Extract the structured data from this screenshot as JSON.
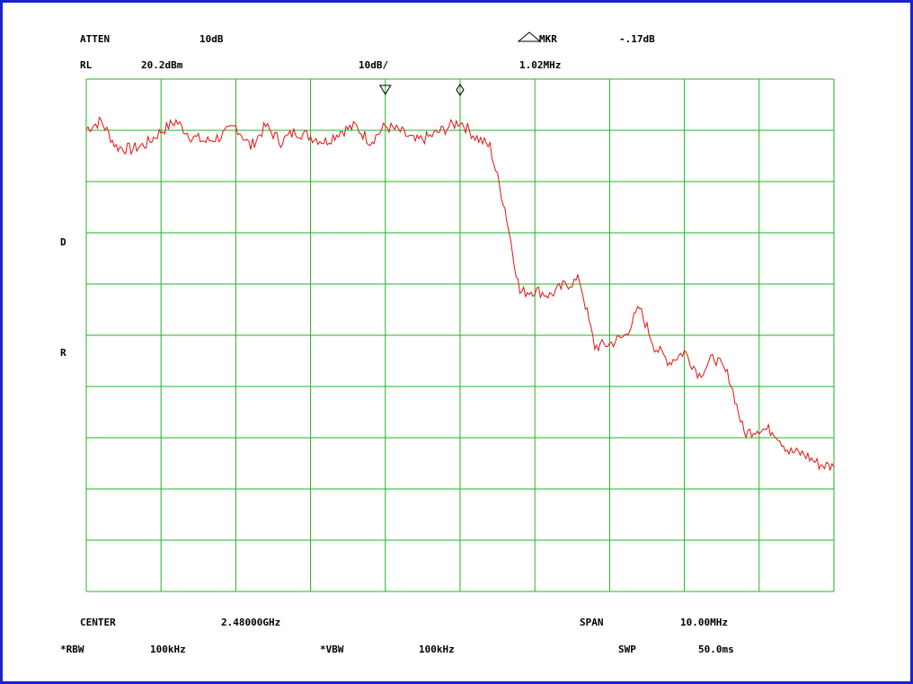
{
  "header": {
    "atten_label": "ATTEN",
    "atten_value": "10dB",
    "marker_mode": "MKR",
    "marker_value": "-.17dB",
    "rl_label": "RL",
    "rl_value": "20.2dBm",
    "scale": "10dB/",
    "marker_freq": "1.02MHz"
  },
  "side": {
    "d_label": "D",
    "r_label": "R"
  },
  "footer": {
    "center_label": "CENTER",
    "center_value": "2.48000GHz",
    "span_label": "SPAN",
    "span_value": "10.00MHz",
    "rbw_label": "*RBW",
    "rbw_value": "100kHz",
    "vbw_label": "*VBW",
    "vbw_value": "100kHz",
    "swp_label": "SWP",
    "swp_value": "50.0ms"
  },
  "colors": {
    "border": "#1a22cc",
    "grid": "#22b522",
    "trace": "#e81010",
    "text": "#000000"
  },
  "chart_data": {
    "type": "line",
    "title": "",
    "xlabel": "",
    "ylabel": "",
    "grid": true,
    "grid_divisions": {
      "x": 10,
      "y": 10
    },
    "xlim": [
      2.475,
      2.485
    ],
    "ylim": [
      -79.8,
      20.2
    ],
    "x_unit": "GHz",
    "y_unit": "dBm",
    "markers": [
      {
        "type": "reference",
        "symbol": "triangle",
        "x": 2.479,
        "y": 16.0
      },
      {
        "type": "delta",
        "symbol": "diamond",
        "x": 2.48,
        "y": 16.0
      }
    ],
    "series": [
      {
        "x": [
          2.475,
          2.4752,
          2.4754,
          2.4756,
          2.4758,
          2.476,
          2.4762,
          2.4764,
          2.4766,
          2.4768,
          2.477,
          2.4772,
          2.4774,
          2.4776,
          2.4778,
          2.478,
          2.4782,
          2.4784,
          2.4786,
          2.4788,
          2.479,
          2.4792,
          2.4794,
          2.4796,
          2.4798,
          2.48,
          2.4802,
          2.4804,
          2.4806,
          2.4808,
          2.481,
          2.4812,
          2.4814,
          2.4816,
          2.4818,
          2.482,
          2.4822,
          2.4824,
          2.4826,
          2.4828,
          2.483,
          2.4832,
          2.4834,
          2.4836,
          2.4838,
          2.484,
          2.4842,
          2.4844,
          2.4846,
          2.4848,
          2.485
        ],
        "y": [
          10.5,
          12.0,
          7.0,
          6.5,
          7.5,
          10.0,
          12.0,
          9.0,
          8.0,
          9.0,
          11.0,
          7.0,
          11.0,
          8.0,
          10.0,
          9.0,
          8.0,
          10.0,
          11.0,
          8.0,
          11.0,
          10.0,
          8.0,
          9.0,
          10.5,
          12.0,
          9.0,
          7.0,
          -5.0,
          -21.5,
          -21.0,
          -22.0,
          -20.0,
          -19.0,
          -32.0,
          -31.5,
          -30.0,
          -24.5,
          -32.0,
          -35.0,
          -33.0,
          -37.5,
          -34.0,
          -38.0,
          -49.0,
          -48.0,
          -48.5,
          -52.5,
          -53.0,
          -55.0,
          -55.5
        ]
      }
    ]
  }
}
